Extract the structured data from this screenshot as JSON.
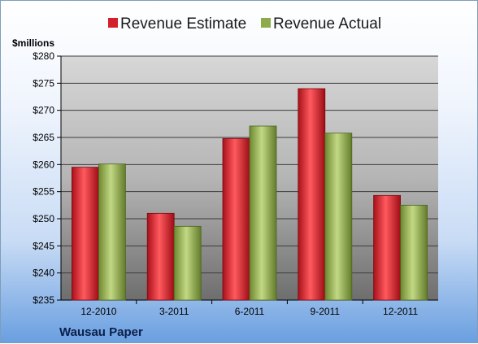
{
  "chart_data": {
    "type": "bar",
    "title": "",
    "ylabel": "$millions",
    "xlabel": "",
    "company": "Wausau Paper",
    "categories": [
      "12-2010",
      "3-2011",
      "6-2011",
      "9-2011",
      "12-2011"
    ],
    "series": [
      {
        "name": "Revenue Estimate",
        "color": "#d4202a",
        "values": [
          259.5,
          251.0,
          264.8,
          274.0,
          254.3
        ]
      },
      {
        "name": "Revenue Actual",
        "color": "#8faa4a",
        "values": [
          260.1,
          248.6,
          267.1,
          265.8,
          252.5
        ]
      }
    ],
    "ylim": [
      235,
      280
    ],
    "ytick_step": 5,
    "ytick_prefix": "$",
    "grid": true,
    "legend": "top"
  }
}
